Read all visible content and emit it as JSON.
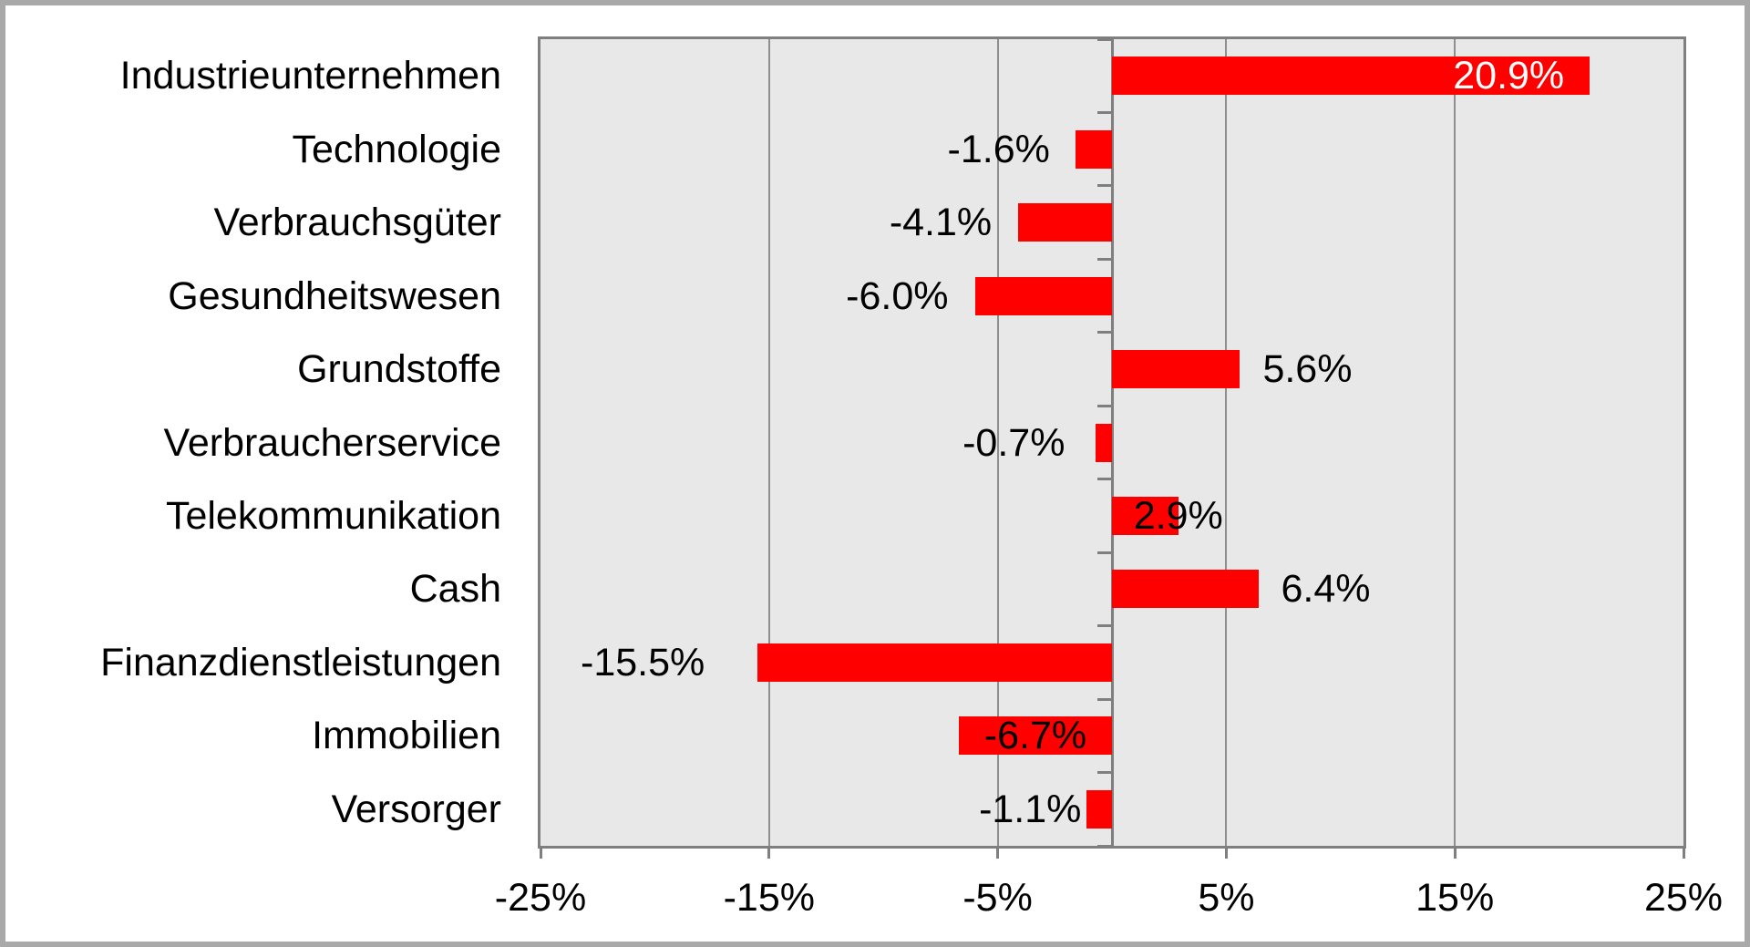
{
  "chart_data": {
    "type": "bar",
    "orientation": "horizontal",
    "title": "",
    "xlabel": "",
    "ylabel": "",
    "xlim": [
      -25,
      25
    ],
    "grid": true,
    "legend": false,
    "value_unit": "%",
    "categories": [
      "Industrieunternehmen",
      "Technologie",
      "Verbrauchsgüter",
      "Gesundheitswesen",
      "Grundstoffe",
      "Verbraucherservice",
      "Telekommunikation",
      "Cash",
      "Finanzdienstleistungen",
      "Immobilien",
      "Versorger"
    ],
    "values": [
      20.9,
      -1.6,
      -4.1,
      -6.0,
      5.6,
      -0.7,
      2.9,
      6.4,
      -15.5,
      -6.7,
      -1.1
    ],
    "items": [
      {
        "category": "Industrieunternehmen",
        "value": 20.9,
        "label": "20.9%",
        "label_pos": "inside-end",
        "label_gap": 28,
        "label_color": "#ffffff"
      },
      {
        "category": "Technologie",
        "value": -1.6,
        "label": "-1.6%",
        "label_pos": "outside",
        "label_gap": 28,
        "label_color": "#000000"
      },
      {
        "category": "Verbrauchsgüter",
        "value": -4.1,
        "label": "-4.1%",
        "label_pos": "outside",
        "label_gap": 29,
        "label_color": "#000000"
      },
      {
        "category": "Gesundheitswesen",
        "value": -6.0,
        "label": "-6.0%",
        "label_pos": "outside",
        "label_gap": 29,
        "label_color": "#000000"
      },
      {
        "category": "Grundstoffe",
        "value": 5.6,
        "label": "5.6%",
        "label_pos": "outside",
        "label_gap": 25,
        "label_color": "#000000"
      },
      {
        "category": "Verbraucherservice",
        "value": -0.7,
        "label": "-0.7%",
        "label_pos": "outside",
        "label_gap": 34,
        "label_color": "#000000"
      },
      {
        "category": "Telekommunikation",
        "value": 2.9,
        "label": "2.9%",
        "label_pos": "center-end",
        "label_gap": 0,
        "label_color": "#000000"
      },
      {
        "category": "Cash",
        "value": 6.4,
        "label": "6.4%",
        "label_pos": "outside",
        "label_gap": 25,
        "label_color": "#000000"
      },
      {
        "category": "Finanzdienstleistungen",
        "value": -15.5,
        "label": "-15.5%",
        "label_pos": "outside",
        "label_gap": 58,
        "label_color": "#000000"
      },
      {
        "category": "Immobilien",
        "value": -6.7,
        "label": "-6.7%",
        "label_pos": "inside-center",
        "label_gap": 0,
        "label_color": "#000000"
      },
      {
        "category": "Versorger",
        "value": -1.1,
        "label": "-1.1%",
        "label_pos": "outside",
        "label_gap": 6,
        "label_color": "#000000"
      }
    ],
    "x_ticks": [
      {
        "value": -25,
        "label": "-25%"
      },
      {
        "value": -15,
        "label": "-15%"
      },
      {
        "value": -5,
        "label": "-5%"
      },
      {
        "value": 5,
        "label": "5%"
      },
      {
        "value": 15,
        "label": "15%"
      },
      {
        "value": 25,
        "label": "25%"
      }
    ],
    "colors": {
      "bar_fill": "#ff0000",
      "plot_background": "#e8e8e8",
      "page_background": "#ffffff",
      "gridline": "#8f8f8f",
      "axis_line": "#7f7f7f",
      "plot_border": "#7f7f7f",
      "outer_frame": "#a9a9a9",
      "label_text": "#000000",
      "label_inside_text": "#ffffff"
    }
  }
}
